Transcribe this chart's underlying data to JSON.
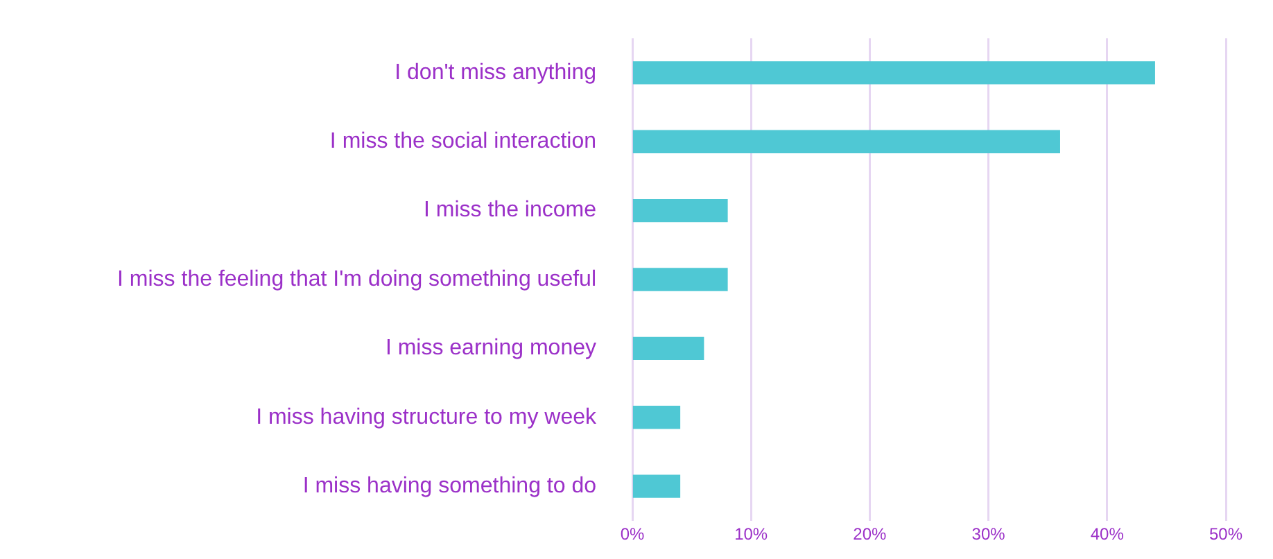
{
  "chart_data": {
    "type": "bar",
    "orientation": "horizontal",
    "categories": [
      "I don't miss anything",
      "I miss the social interaction",
      "I miss the income",
      "I miss the feeling that I'm doing something useful",
      "I miss earning money",
      "I miss having structure to my week",
      "I miss having something to do"
    ],
    "values": [
      44,
      36,
      8,
      8,
      6,
      4,
      4
    ],
    "color": "#4fc8d4",
    "xlim": [
      0,
      50
    ],
    "xticks": [
      {
        "value": 0,
        "label": "0%"
      },
      {
        "value": 10,
        "label": "10%"
      },
      {
        "value": 20,
        "label": "20%"
      },
      {
        "value": 30,
        "label": "30%"
      },
      {
        "value": 40,
        "label": "40%"
      },
      {
        "value": 50,
        "label": "50%"
      }
    ],
    "grid": "x"
  }
}
